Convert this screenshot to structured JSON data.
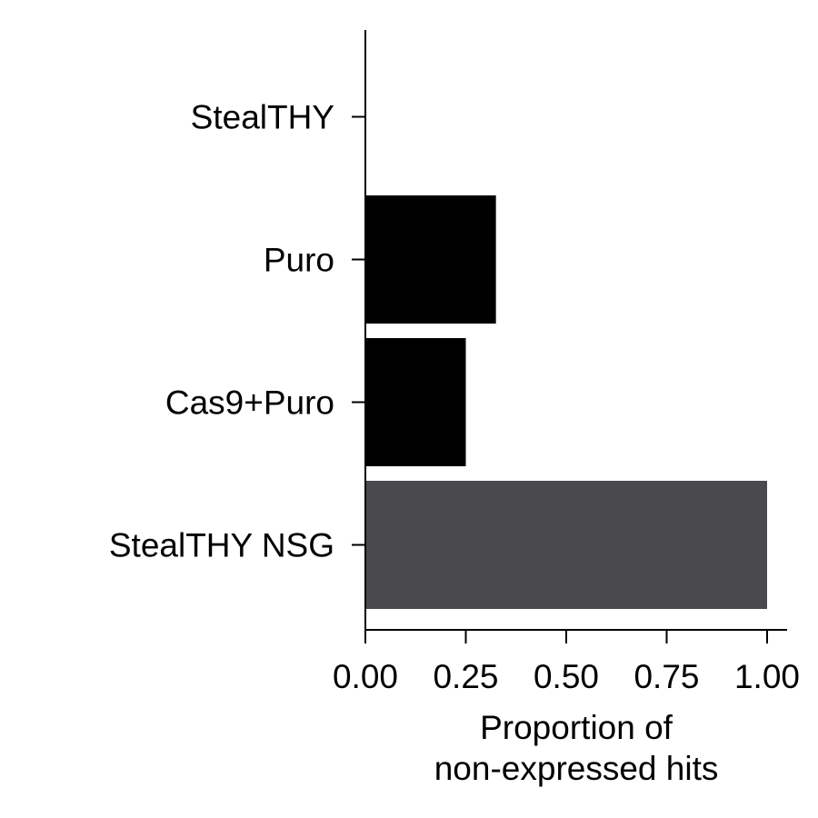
{
  "chart_data": {
    "type": "bar",
    "orientation": "horizontal",
    "categories": [
      "StealTHY",
      "Puro",
      "Cas9+Puro",
      "StealTHY NSG"
    ],
    "values": [
      0.0,
      0.325,
      0.25,
      1.0
    ],
    "bar_colors": [
      "#000000",
      "#000000",
      "#000000",
      "#4a4a4c"
    ],
    "xlim": [
      0,
      1.05
    ],
    "x_ticks": [
      0,
      0.25,
      0.5,
      0.75,
      1.0
    ],
    "x_tick_labels": [
      "0.00",
      "0.25",
      "0.50",
      "0.75",
      "1.00"
    ],
    "xlabel": [
      "Proportion of",
      "non-expressed hits"
    ],
    "ylabel": "",
    "title": "",
    "grid": false,
    "legend": "none"
  }
}
